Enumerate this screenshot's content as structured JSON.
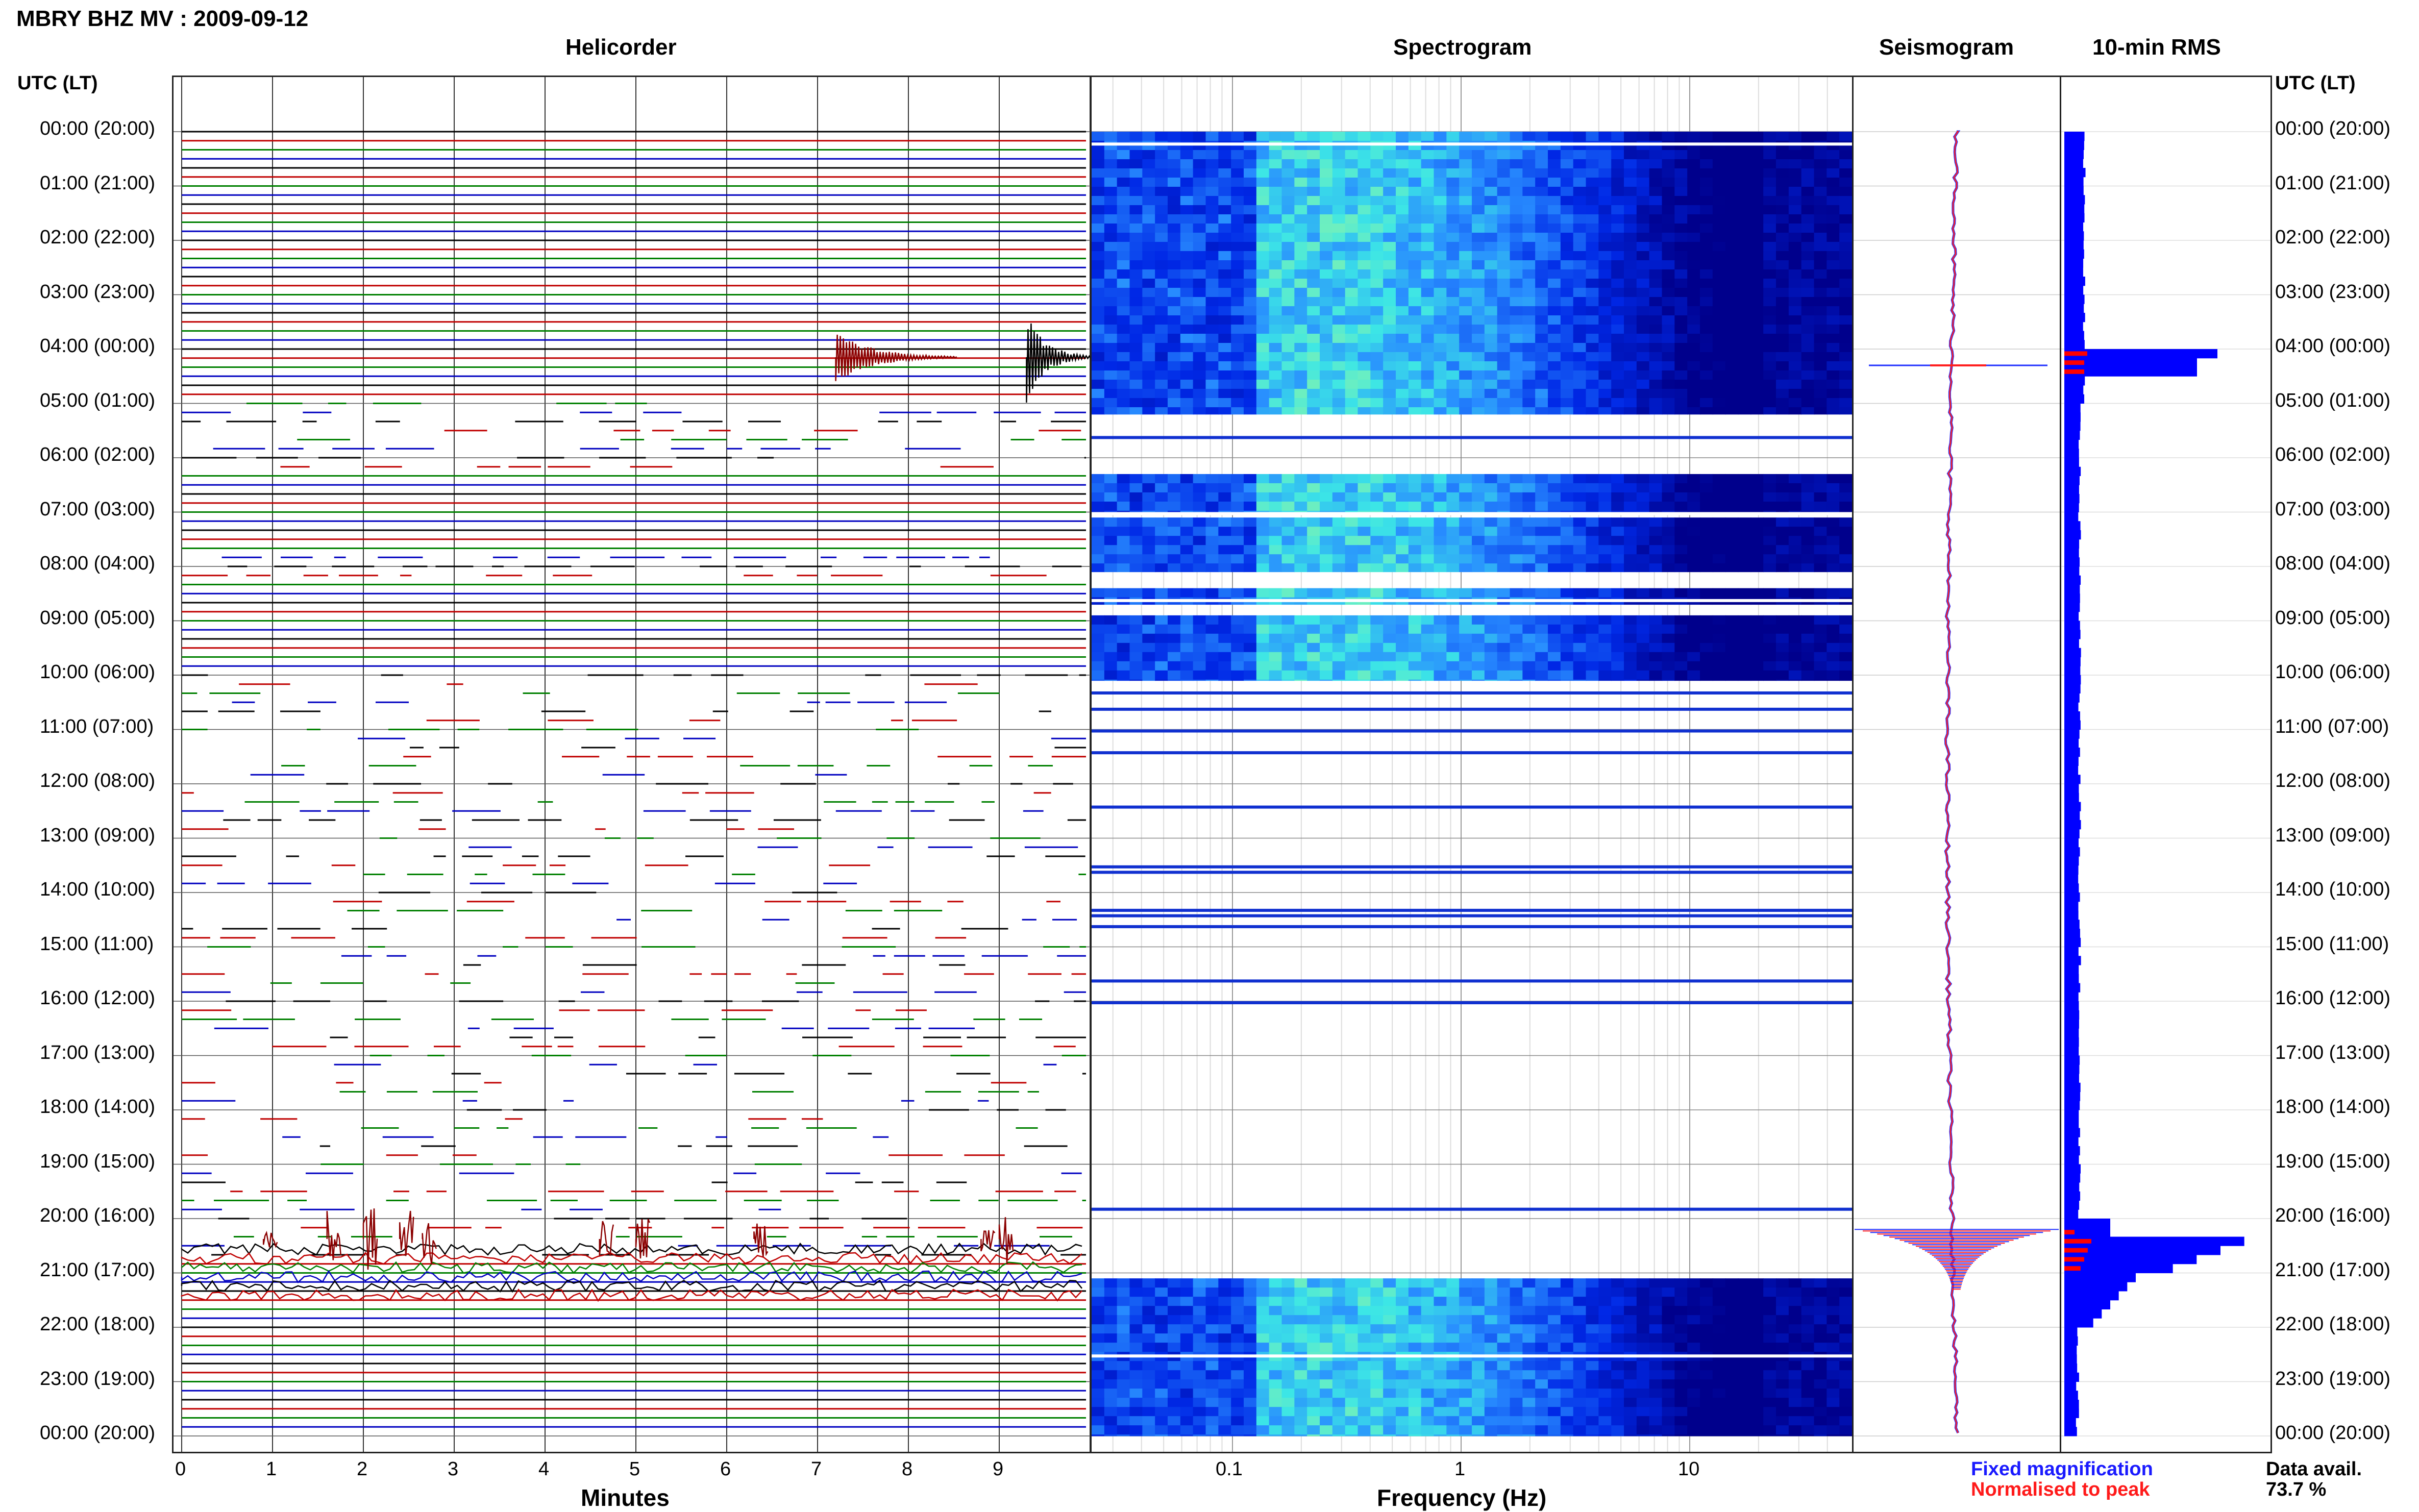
{
  "header": {
    "title": "MBRY BHZ MV : 2009-09-12",
    "utc_left": "UTC (LT)",
    "utc_right": "UTC (LT)"
  },
  "panels": {
    "helicorder": "Helicorder",
    "spectrogram": "Spectrogram",
    "seismogram": "Seismogram",
    "rms": "10-min RMS"
  },
  "time_labels": [
    "00:00 (20:00)",
    "01:00 (21:00)",
    "02:00 (22:00)",
    "03:00 (23:00)",
    "04:00 (00:00)",
    "05:00 (01:00)",
    "06:00 (02:00)",
    "07:00 (03:00)",
    "08:00 (04:00)",
    "09:00 (05:00)",
    "10:00 (06:00)",
    "11:00 (07:00)",
    "12:00 (08:00)",
    "13:00 (09:00)",
    "14:00 (10:00)",
    "15:00 (11:00)",
    "16:00 (12:00)",
    "17:00 (13:00)",
    "18:00 (14:00)",
    "19:00 (15:00)",
    "20:00 (16:00)",
    "21:00 (17:00)",
    "22:00 (18:00)",
    "23:00 (19:00)",
    "00:00 (20:00)"
  ],
  "helicorder_axis": {
    "ticks": [
      "0",
      "1",
      "2",
      "3",
      "4",
      "5",
      "6",
      "7",
      "8",
      "9"
    ],
    "xlabel": "Minutes"
  },
  "spectrogram_axis": {
    "ticks": [
      "0.1",
      "1",
      "10"
    ],
    "xlabel": "Frequency (Hz)"
  },
  "legend": {
    "fixed": "Fixed magnification",
    "normalised": "Normalised to peak",
    "fixed_color": "#1a1aff",
    "normalised_color": "#ff1a1a"
  },
  "data_avail": {
    "label": "Data avail.",
    "value": "73.7 %"
  },
  "colors": {
    "trace_cycle": [
      "#000000",
      "#c00000",
      "#008000",
      "#0000c0"
    ],
    "rms_blue": "#0000ff",
    "rms_red": "#ff0000",
    "spec_dark": "#00008b"
  },
  "chart_data": {
    "type": "heatmap",
    "title": "MBRY BHZ MV : 2009-09-12",
    "data_coverage_percent": 73.7,
    "rms_10min": {
      "note_units": "relative",
      "high_intervals_utc": [
        "04:00-04:20",
        "20:00-21:30"
      ]
    }
  }
}
